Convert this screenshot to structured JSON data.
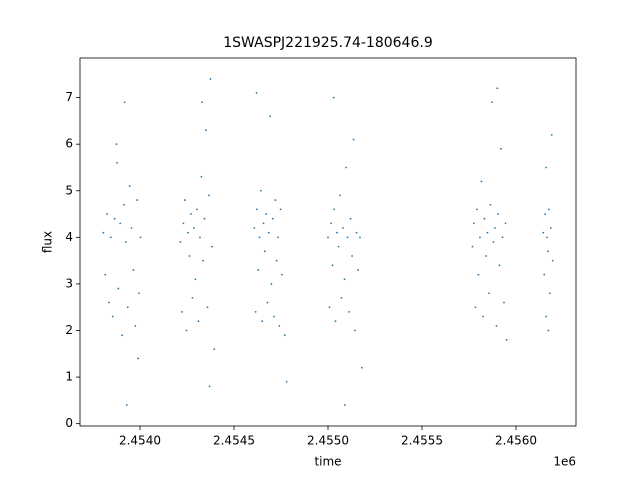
{
  "chart_data": {
    "type": "scatter",
    "title": "1SWASPJ221925.74-180646.9",
    "x_label": "time",
    "y_label": "flux",
    "x_offset_label": "1e6",
    "color": "#1f77b4",
    "xlim": [
      2453681,
      2456319
    ],
    "ylim": [
      -0.05,
      7.85
    ],
    "xticks": [
      {
        "value": 2454000,
        "label": "2.4540"
      },
      {
        "value": 2454500,
        "label": "2.4545"
      },
      {
        "value": 2455000,
        "label": "2.4550"
      },
      {
        "value": 2455500,
        "label": "2.4555"
      },
      {
        "value": 2456000,
        "label": "2.4560"
      }
    ],
    "yticks": [
      0,
      1,
      2,
      3,
      4,
      5,
      6,
      7
    ],
    "x": [
      2453805,
      2453815,
      2453825,
      2453835,
      2453845,
      2453855,
      2453865,
      2453875,
      2453885,
      2453895,
      2453905,
      2453915,
      2453925,
      2453935,
      2453945,
      2453955,
      2453965,
      2453975,
      2453985,
      2453995,
      2454003,
      2453878,
      2453918,
      2453930,
      2453990,
      2454215,
      2454223,
      2454231,
      2454239,
      2454247,
      2454255,
      2454263,
      2454271,
      2454279,
      2454287,
      2454295,
      2454303,
      2454311,
      2454319,
      2454327,
      2454335,
      2454343,
      2454351,
      2454359,
      2454367,
      2454375,
      2454383,
      2454395,
      2454370,
      2454330,
      2454608,
      2454615,
      2454622,
      2454629,
      2454636,
      2454643,
      2454650,
      2454657,
      2454664,
      2454671,
      2454678,
      2454685,
      2454692,
      2454699,
      2454706,
      2454713,
      2454720,
      2454727,
      2454734,
      2454741,
      2454748,
      2454755,
      2454770,
      2454620,
      2454780,
      2455000,
      2455008,
      2455016,
      2455024,
      2455032,
      2455040,
      2455048,
      2455056,
      2455064,
      2455072,
      2455080,
      2455088,
      2455096,
      2455104,
      2455112,
      2455120,
      2455128,
      2455136,
      2455144,
      2455152,
      2455160,
      2455170,
      2455180,
      2455030,
      2455090,
      2455768,
      2455776,
      2455784,
      2455792,
      2455800,
      2455808,
      2455816,
      2455824,
      2455832,
      2455840,
      2455848,
      2455856,
      2455864,
      2455872,
      2455880,
      2455888,
      2455896,
      2455904,
      2455912,
      2455920,
      2455928,
      2455936,
      2455944,
      2455950,
      2455900,
      2456145,
      2456150,
      2456155,
      2456160,
      2456165,
      2456170,
      2456175,
      2456180,
      2456185,
      2456190,
      2456195,
      2456160,
      2456172
    ],
    "values": [
      4.1,
      3.2,
      4.5,
      2.6,
      4.0,
      2.3,
      4.4,
      6.0,
      2.9,
      4.3,
      1.9,
      4.7,
      3.9,
      2.5,
      5.1,
      4.2,
      3.3,
      2.1,
      4.8,
      2.8,
      4.0,
      5.6,
      6.9,
      0.4,
      1.4,
      3.9,
      2.4,
      4.3,
      4.8,
      2.0,
      4.1,
      3.6,
      4.5,
      2.7,
      4.2,
      3.1,
      4.6,
      2.2,
      4.0,
      5.3,
      3.5,
      4.4,
      6.3,
      2.5,
      4.9,
      7.4,
      3.8,
      1.6,
      0.8,
      6.9,
      4.2,
      2.4,
      4.6,
      3.3,
      4.0,
      5.0,
      2.2,
      4.3,
      3.7,
      4.5,
      2.6,
      4.1,
      6.6,
      3.0,
      4.4,
      2.3,
      4.8,
      3.5,
      4.0,
      2.1,
      4.6,
      3.2,
      1.9,
      7.1,
      0.9,
      4.0,
      2.5,
      4.3,
      3.4,
      4.6,
      2.2,
      4.1,
      3.8,
      4.9,
      2.7,
      4.2,
      3.1,
      5.5,
      4.0,
      2.4,
      4.4,
      3.6,
      6.1,
      2.0,
      4.1,
      3.3,
      4.0,
      1.2,
      7.0,
      0.4,
      3.8,
      4.3,
      2.5,
      4.6,
      3.2,
      4.0,
      5.2,
      2.3,
      4.4,
      3.6,
      4.1,
      2.8,
      4.7,
      6.9,
      3.9,
      4.2,
      2.1,
      4.5,
      3.4,
      5.9,
      4.0,
      2.6,
      4.3,
      1.8,
      7.2,
      4.1,
      3.2,
      4.5,
      2.3,
      4.0,
      3.7,
      4.6,
      2.8,
      4.2,
      6.2,
      3.5,
      5.5,
      2.0
    ]
  }
}
